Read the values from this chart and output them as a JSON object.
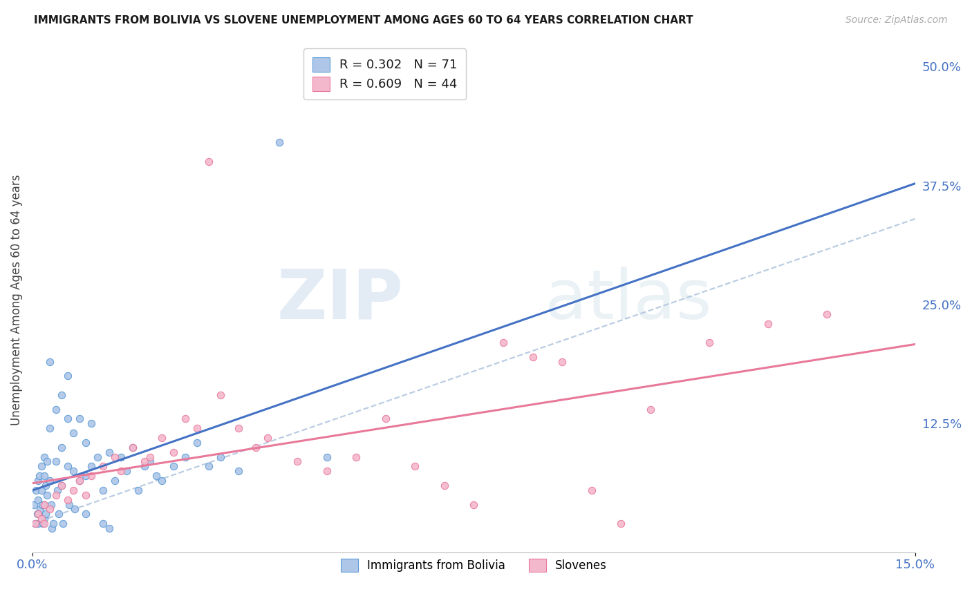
{
  "title": "IMMIGRANTS FROM BOLIVIA VS SLOVENE UNEMPLOYMENT AMONG AGES 60 TO 64 YEARS CORRELATION CHART",
  "source": "Source: ZipAtlas.com",
  "ylabel": "Unemployment Among Ages 60 to 64 years",
  "xlim": [
    0.0,
    0.15
  ],
  "ylim": [
    -0.01,
    0.52
  ],
  "ytick_labels_right": [
    "",
    "12.5%",
    "25.0%",
    "37.5%",
    "50.0%"
  ],
  "yticks_right": [
    0.0,
    0.125,
    0.25,
    0.375,
    0.5
  ],
  "background_color": "#ffffff",
  "grid_color": "#d8d8d8",
  "watermark_zip": "ZIP",
  "watermark_atlas": "atlas",
  "bolivia_color": "#aec6e8",
  "bolivia_edge_color": "#5b9bd5",
  "slovene_color": "#f4b8cc",
  "slovene_edge_color": "#e8799a",
  "bolivia_line_color": "#4472c4",
  "slovene_line_color": "#e8799a",
  "dashed_line_color": "#b0c4de",
  "legend_text1": "R = 0.302   N = 71",
  "legend_text2": "R = 0.609   N = 44",
  "bolivia_x": [
    0.0003,
    0.0005,
    0.0006,
    0.0008,
    0.001,
    0.001,
    0.001,
    0.0012,
    0.0013,
    0.0015,
    0.0015,
    0.0017,
    0.0018,
    0.002,
    0.002,
    0.002,
    0.002,
    0.0022,
    0.0023,
    0.0025,
    0.0025,
    0.003,
    0.003,
    0.003,
    0.0032,
    0.0033,
    0.0035,
    0.004,
    0.004,
    0.0042,
    0.0045,
    0.005,
    0.005,
    0.005,
    0.0052,
    0.006,
    0.006,
    0.006,
    0.0062,
    0.007,
    0.007,
    0.0072,
    0.008,
    0.008,
    0.009,
    0.009,
    0.009,
    0.01,
    0.01,
    0.011,
    0.012,
    0.012,
    0.013,
    0.013,
    0.014,
    0.015,
    0.016,
    0.017,
    0.018,
    0.019,
    0.02,
    0.021,
    0.022,
    0.024,
    0.026,
    0.028,
    0.03,
    0.032,
    0.035,
    0.042,
    0.05
  ],
  "bolivia_y": [
    0.04,
    0.02,
    0.055,
    0.03,
    0.065,
    0.045,
    0.02,
    0.07,
    0.035,
    0.08,
    0.055,
    0.04,
    0.02,
    0.09,
    0.07,
    0.04,
    0.025,
    0.06,
    0.03,
    0.085,
    0.05,
    0.19,
    0.12,
    0.065,
    0.04,
    0.015,
    0.02,
    0.14,
    0.085,
    0.055,
    0.03,
    0.155,
    0.1,
    0.06,
    0.02,
    0.175,
    0.13,
    0.08,
    0.04,
    0.115,
    0.075,
    0.035,
    0.13,
    0.065,
    0.105,
    0.07,
    0.03,
    0.125,
    0.08,
    0.09,
    0.055,
    0.02,
    0.095,
    0.015,
    0.065,
    0.09,
    0.075,
    0.1,
    0.055,
    0.08,
    0.085,
    0.07,
    0.065,
    0.08,
    0.09,
    0.105,
    0.08,
    0.09,
    0.075,
    0.42,
    0.09
  ],
  "slovene_x": [
    0.0005,
    0.001,
    0.0015,
    0.002,
    0.002,
    0.003,
    0.004,
    0.005,
    0.006,
    0.007,
    0.008,
    0.009,
    0.01,
    0.012,
    0.014,
    0.015,
    0.017,
    0.019,
    0.02,
    0.022,
    0.024,
    0.026,
    0.028,
    0.03,
    0.032,
    0.035,
    0.038,
    0.04,
    0.045,
    0.05,
    0.055,
    0.06,
    0.065,
    0.07,
    0.075,
    0.08,
    0.085,
    0.09,
    0.095,
    0.1,
    0.105,
    0.115,
    0.125,
    0.135
  ],
  "slovene_y": [
    0.02,
    0.03,
    0.025,
    0.04,
    0.02,
    0.035,
    0.05,
    0.06,
    0.045,
    0.055,
    0.065,
    0.05,
    0.07,
    0.08,
    0.09,
    0.075,
    0.1,
    0.085,
    0.09,
    0.11,
    0.095,
    0.13,
    0.12,
    0.4,
    0.155,
    0.12,
    0.1,
    0.11,
    0.085,
    0.075,
    0.09,
    0.13,
    0.08,
    0.06,
    0.04,
    0.21,
    0.195,
    0.19,
    0.055,
    0.02,
    0.14,
    0.21,
    0.23,
    0.24
  ],
  "bolivia_reg": [
    0.005,
    0.098
  ],
  "slovene_reg": [
    0.004,
    1.45
  ],
  "dashed_reg": [
    0.0,
    2.3
  ]
}
